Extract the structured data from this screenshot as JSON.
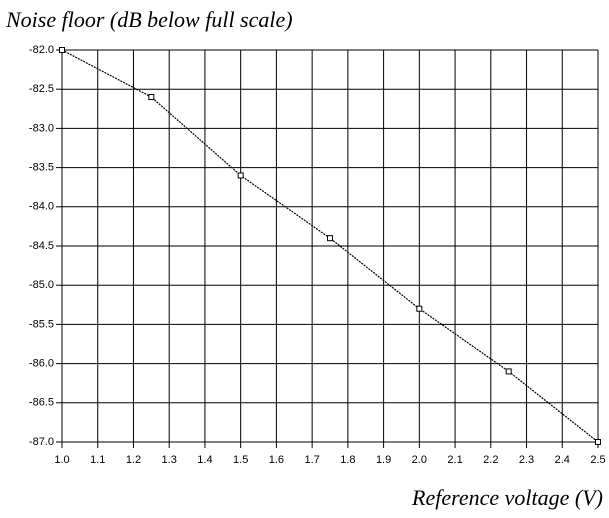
{
  "chart_data": {
    "type": "line",
    "title": "Noise floor (dB below full scale)",
    "x_label": "Reference voltage (V)",
    "x": [
      1.0,
      1.25,
      1.5,
      1.75,
      2.0,
      2.25,
      2.5
    ],
    "series": [
      {
        "color": "#000000",
        "values": [
          -82.0,
          -82.6,
          -83.6,
          -84.4,
          -85.3,
          -86.1,
          -87.0
        ]
      }
    ],
    "xlim": [
      1.0,
      2.5
    ],
    "xticks": [
      {
        "value": 1,
        "label": "1.0"
      },
      1.1,
      1.2,
      1.3,
      1.4,
      1.5,
      1.6,
      1.7,
      1.8,
      1.9,
      {
        "value": 2,
        "label": "2.0"
      },
      2.1,
      2.2,
      2.3,
      2.4,
      2.5
    ],
    "ylim": [
      -87.0,
      -82.0
    ],
    "yticks": [
      {
        "value": -82,
        "label": "-82.0"
      },
      -82.5,
      {
        "value": -83,
        "label": "-83.0"
      },
      -83.5,
      {
        "value": -84,
        "label": "-84.0"
      },
      -84.5,
      {
        "value": -85,
        "label": "-85.0"
      },
      -85.5,
      {
        "value": -86,
        "label": "-86.0"
      },
      -86.5,
      {
        "value": -87,
        "label": "-87.0"
      }
    ],
    "grid": true
  }
}
